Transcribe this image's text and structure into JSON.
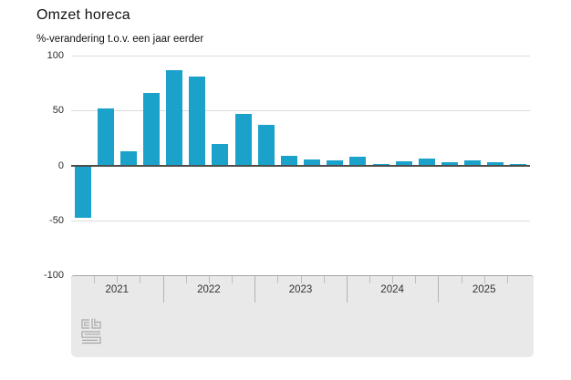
{
  "header": {
    "title": "Omzet horeca",
    "subtitle": "%-verandering t.o.v. een jaar eerder"
  },
  "colors": {
    "bar": "#1ba2ca",
    "grid": "#dcdcdc",
    "zero_line": "#4d4d4d",
    "axis_text": "#2b2b2b",
    "panel_background": "#e9e9e9",
    "panel_border": "#a6a6a6",
    "logo": "#a8a8a8"
  },
  "y_axis": {
    "tick_labels": [
      "100",
      "50",
      "0",
      "-50",
      "-100"
    ],
    "tick_values": [
      100,
      50,
      0,
      -50,
      -100
    ],
    "min": -100,
    "max": 100
  },
  "x_axis": {
    "years": [
      "2021",
      "2022",
      "2023",
      "2024",
      "2025"
    ],
    "quarters_per_year": 4
  },
  "footer": {
    "logo_name": "cbs-logo"
  },
  "chart_data": {
    "type": "bar",
    "title": "Omzet horeca",
    "subtitle": "%-verandering t.o.v. een jaar eerder",
    "unit": "% change year-on-year",
    "x": [
      "2021-Q1",
      "2021-Q2",
      "2021-Q3",
      "2021-Q4",
      "2022-Q1",
      "2022-Q2",
      "2022-Q3",
      "2022-Q4",
      "2023-Q1",
      "2023-Q2",
      "2023-Q3",
      "2023-Q4",
      "2024-Q1",
      "2024-Q2",
      "2024-Q3",
      "2024-Q4",
      "2025-Q1",
      "2025-Q2",
      "2025-Q3",
      "2025-Q4"
    ],
    "values": [
      -47,
      52,
      13,
      66,
      87,
      81,
      20,
      47,
      37,
      9,
      6,
      5,
      8,
      2,
      4,
      7,
      3,
      5,
      3,
      2
    ],
    "ylim": [
      -100,
      100
    ],
    "grid": true,
    "legend": false
  }
}
